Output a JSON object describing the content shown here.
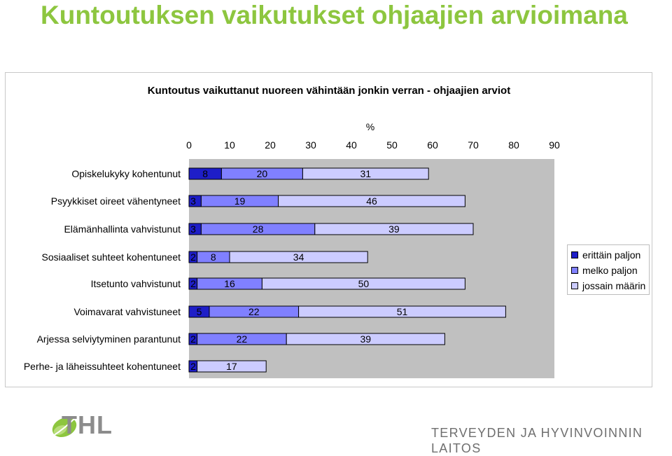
{
  "page": {
    "title": "Kuntoutuksen vaikutukset ohjaajien arvioimana",
    "footer_brand": "THL",
    "footer_org": "TERVEYDEN JA HYVINVOINNIN LAITOS"
  },
  "colors": {
    "title": "#8dc63f",
    "plot_background": "#c0c0c0",
    "series": [
      "#1e1ec8",
      "#8080ff",
      "#ccccff"
    ],
    "footer_text": "#8c8c8c"
  },
  "chart_data": {
    "type": "bar",
    "orientation": "horizontal",
    "stacked": true,
    "title": "Kuntoutus vaikuttanut nuoreen vähintään jonkin verran - ohjaajien arviot",
    "xlabel": "%",
    "xlim": [
      0,
      90
    ],
    "xticks": [
      0,
      10,
      20,
      30,
      40,
      50,
      60,
      70,
      80,
      90
    ],
    "x_axis_position": "top",
    "grid": false,
    "legend_position": "right",
    "categories": [
      "Opiskelukyky kohentunut",
      "Psyykkiset oireet vähentyneet",
      "Elämänhallinta vahvistunut",
      "Sosiaaliset suhteet kohentuneet",
      "Itsetunto vahvistunut",
      "Voimavarat vahvistuneet",
      "Arjessa selviytyminen parantunut",
      "Perhe- ja läheissuhteet kohentuneet"
    ],
    "series": [
      {
        "name": "erittäin paljon",
        "values": [
          8,
          3,
          3,
          2,
          2,
          5,
          2,
          2
        ]
      },
      {
        "name": "melko paljon",
        "values": [
          20,
          19,
          28,
          8,
          16,
          22,
          22,
          0
        ]
      },
      {
        "name": "jossain määrin",
        "values": [
          31,
          46,
          39,
          34,
          50,
          51,
          39,
          17
        ]
      }
    ]
  }
}
